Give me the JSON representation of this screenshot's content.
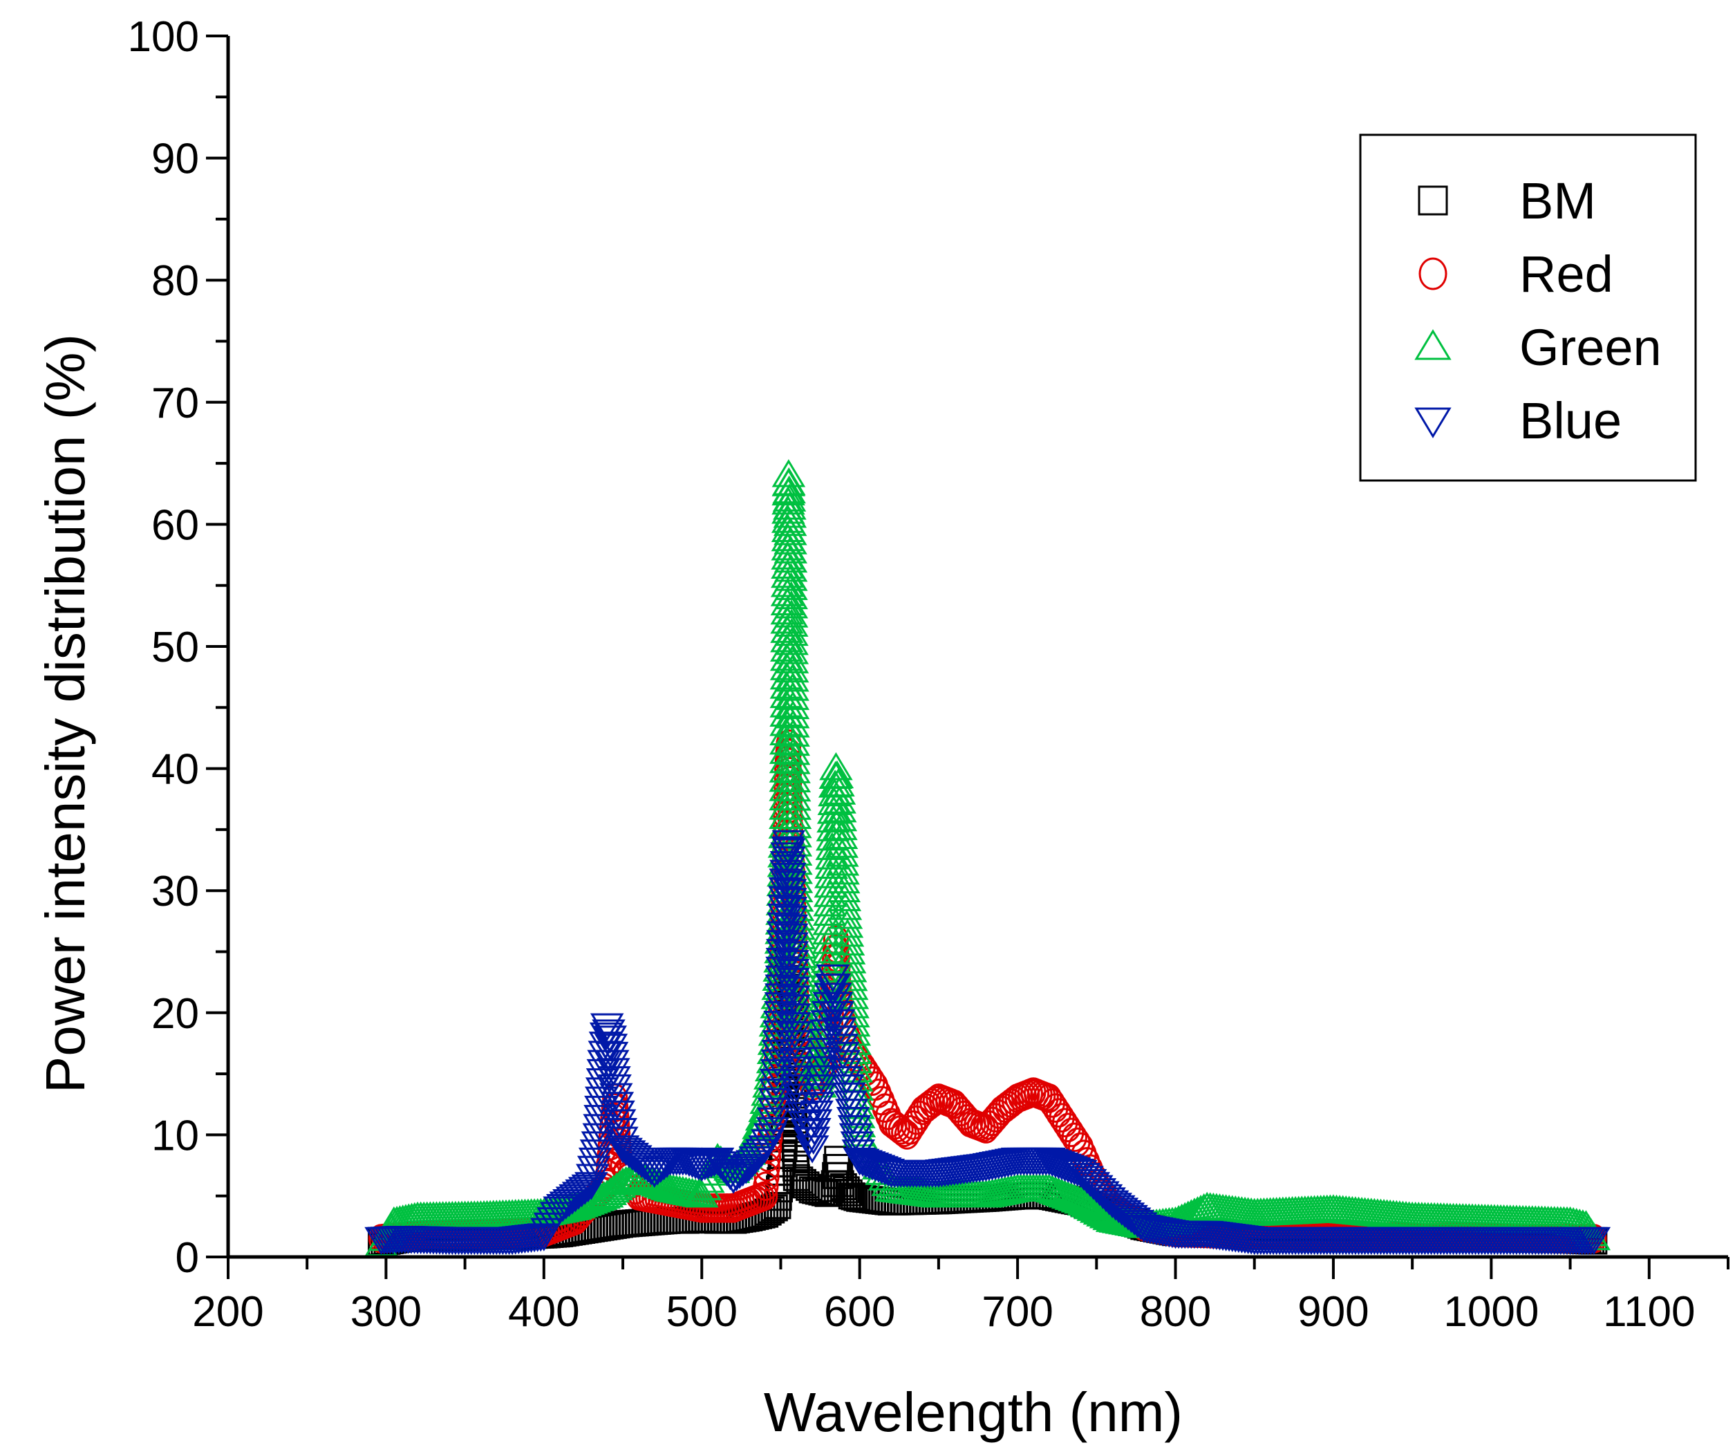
{
  "chart_data": {
    "type": "scatter",
    "title": "",
    "xlabel": "Wavelength (nm)",
    "ylabel": "Power intensity distribution (%)",
    "xlim": [
      200,
      1150
    ],
    "ylim": [
      0,
      100
    ],
    "xticks": [
      200,
      300,
      400,
      500,
      600,
      700,
      800,
      900,
      1000,
      1100
    ],
    "yticks": [
      0,
      10,
      20,
      30,
      40,
      50,
      60,
      70,
      80,
      90,
      100
    ],
    "legend": {
      "position": "top-right"
    },
    "series": [
      {
        "name": "BM",
        "marker": "square-open",
        "color": "#000000",
        "points": [
          [
            297,
            1.2
          ],
          [
            310,
            1.5
          ],
          [
            340,
            1.6
          ],
          [
            380,
            1.7
          ],
          [
            400,
            1.8
          ],
          [
            410,
            1.9
          ],
          [
            420,
            2.1
          ],
          [
            430,
            2.3
          ],
          [
            440,
            2.5
          ],
          [
            450,
            2.7
          ],
          [
            460,
            2.8
          ],
          [
            470,
            2.9
          ],
          [
            480,
            3.0
          ],
          [
            490,
            3.0
          ],
          [
            500,
            3.1
          ],
          [
            510,
            3.0
          ],
          [
            520,
            3.0
          ],
          [
            530,
            3.2
          ],
          [
            540,
            3.5
          ],
          [
            548,
            4.2
          ],
          [
            552,
            9.0
          ],
          [
            554,
            20.0
          ],
          [
            555,
            27.0
          ],
          [
            556,
            22.0
          ],
          [
            558,
            12.0
          ],
          [
            560,
            6.5
          ],
          [
            570,
            5.5
          ],
          [
            580,
            5.2
          ],
          [
            584,
            6.0
          ],
          [
            586,
            8.0
          ],
          [
            588,
            6.0
          ],
          [
            595,
            5.0
          ],
          [
            600,
            4.8
          ],
          [
            620,
            4.5
          ],
          [
            650,
            4.6
          ],
          [
            680,
            4.8
          ],
          [
            700,
            5.0
          ],
          [
            720,
            5.0
          ],
          [
            740,
            4.5
          ],
          [
            760,
            3.5
          ],
          [
            780,
            2.5
          ],
          [
            800,
            2.0
          ],
          [
            820,
            2.0
          ],
          [
            850,
            1.7
          ],
          [
            900,
            1.6
          ],
          [
            950,
            1.5
          ],
          [
            1000,
            1.5
          ],
          [
            1050,
            1.4
          ],
          [
            1065,
            1.3
          ]
        ]
      },
      {
        "name": "Red",
        "marker": "circle-open",
        "color": "#e00000",
        "points": [
          [
            297,
            1.5
          ],
          [
            320,
            1.8
          ],
          [
            360,
            1.9
          ],
          [
            400,
            2.0
          ],
          [
            420,
            3.0
          ],
          [
            440,
            6.0
          ],
          [
            445,
            13.0
          ],
          [
            448,
            8.0
          ],
          [
            460,
            5.0
          ],
          [
            480,
            4.5
          ],
          [
            500,
            4.0
          ],
          [
            520,
            4.0
          ],
          [
            540,
            5.0
          ],
          [
            550,
            20.0
          ],
          [
            554,
            40.0
          ],
          [
            555,
            42.0
          ],
          [
            556,
            36.0
          ],
          [
            558,
            30.0
          ],
          [
            560,
            20.0
          ],
          [
            570,
            14.0
          ],
          [
            580,
            16.0
          ],
          [
            585,
            26.0
          ],
          [
            588,
            20.0
          ],
          [
            595,
            17.0
          ],
          [
            600,
            16.0
          ],
          [
            610,
            14.0
          ],
          [
            620,
            11.0
          ],
          [
            630,
            10.0
          ],
          [
            640,
            12.0
          ],
          [
            650,
            13.0
          ],
          [
            660,
            12.5
          ],
          [
            670,
            11.0
          ],
          [
            680,
            10.5
          ],
          [
            690,
            12.0
          ],
          [
            700,
            13.0
          ],
          [
            710,
            13.5
          ],
          [
            720,
            13.0
          ],
          [
            730,
            11.0
          ],
          [
            740,
            9.0
          ],
          [
            750,
            6.0
          ],
          [
            760,
            4.0
          ],
          [
            780,
            2.5
          ],
          [
            800,
            2.0
          ],
          [
            850,
            1.8
          ],
          [
            900,
            1.7
          ],
          [
            950,
            1.6
          ],
          [
            1000,
            1.6
          ],
          [
            1050,
            1.5
          ],
          [
            1065,
            1.5
          ]
        ]
      },
      {
        "name": "Green",
        "marker": "triangle-up-open",
        "color": "#00c040",
        "points": [
          [
            297,
            1.0
          ],
          [
            305,
            2.8
          ],
          [
            320,
            3.2
          ],
          [
            360,
            3.3
          ],
          [
            400,
            3.5
          ],
          [
            420,
            4.0
          ],
          [
            440,
            5.0
          ],
          [
            450,
            6.0
          ],
          [
            460,
            6.5
          ],
          [
            480,
            5.5
          ],
          [
            500,
            5.0
          ],
          [
            510,
            8.0
          ],
          [
            520,
            7.0
          ],
          [
            530,
            8.5
          ],
          [
            540,
            12.0
          ],
          [
            545,
            16.0
          ],
          [
            550,
            25.0
          ],
          [
            553,
            36.0
          ],
          [
            554,
            52.0
          ],
          [
            555,
            64.0
          ],
          [
            556,
            60.0
          ],
          [
            557,
            51.0
          ],
          [
            558,
            42.0
          ],
          [
            560,
            30.0
          ],
          [
            565,
            20.0
          ],
          [
            570,
            16.0
          ],
          [
            575,
            14.0
          ],
          [
            580,
            25.0
          ],
          [
            583,
            35.0
          ],
          [
            585,
            40.0
          ],
          [
            587,
            38.0
          ],
          [
            590,
            30.0
          ],
          [
            595,
            22.0
          ],
          [
            600,
            10.0
          ],
          [
            620,
            5.5
          ],
          [
            650,
            5.0
          ],
          [
            680,
            5.0
          ],
          [
            700,
            5.5
          ],
          [
            720,
            5.5
          ],
          [
            740,
            4.5
          ],
          [
            760,
            3.0
          ],
          [
            780,
            2.5
          ],
          [
            800,
            2.8
          ],
          [
            820,
            4.0
          ],
          [
            850,
            3.5
          ],
          [
            900,
            3.8
          ],
          [
            950,
            3.2
          ],
          [
            1000,
            3.0
          ],
          [
            1050,
            2.8
          ],
          [
            1060,
            2.5
          ],
          [
            1065,
            1.5
          ]
        ]
      },
      {
        "name": "Blue",
        "marker": "triangle-down-open",
        "color": "#0018a8",
        "points": [
          [
            297,
            1.5
          ],
          [
            310,
            1.6
          ],
          [
            340,
            1.5
          ],
          [
            380,
            1.5
          ],
          [
            400,
            1.8
          ],
          [
            410,
            4.0
          ],
          [
            420,
            5.0
          ],
          [
            430,
            6.0
          ],
          [
            435,
            10.0
          ],
          [
            438,
            16.0
          ],
          [
            440,
            19.0
          ],
          [
            442,
            18.0
          ],
          [
            445,
            14.0
          ],
          [
            450,
            9.0
          ],
          [
            460,
            8.0
          ],
          [
            470,
            7.0
          ],
          [
            480,
            8.0
          ],
          [
            490,
            8.0
          ],
          [
            500,
            7.5
          ],
          [
            510,
            8.0
          ],
          [
            520,
            6.5
          ],
          [
            530,
            7.5
          ],
          [
            540,
            9.0
          ],
          [
            545,
            10.5
          ],
          [
            550,
            20.0
          ],
          [
            552,
            28.0
          ],
          [
            554,
            33.0
          ],
          [
            555,
            34.0
          ],
          [
            556,
            30.0
          ],
          [
            558,
            22.0
          ],
          [
            560,
            14.0
          ],
          [
            565,
            11.0
          ],
          [
            570,
            9.0
          ],
          [
            575,
            14.0
          ],
          [
            580,
            20.0
          ],
          [
            583,
            23.0
          ],
          [
            586,
            20.0
          ],
          [
            590,
            16.0
          ],
          [
            595,
            12.0
          ],
          [
            600,
            8.0
          ],
          [
            620,
            7.0
          ],
          [
            650,
            7.0
          ],
          [
            680,
            7.5
          ],
          [
            700,
            8.0
          ],
          [
            720,
            8.0
          ],
          [
            740,
            7.0
          ],
          [
            760,
            4.5
          ],
          [
            780,
            2.5
          ],
          [
            800,
            2.0
          ],
          [
            820,
            2.0
          ],
          [
            850,
            1.5
          ],
          [
            900,
            1.5
          ],
          [
            950,
            1.5
          ],
          [
            1000,
            1.5
          ],
          [
            1050,
            1.5
          ],
          [
            1065,
            1.5
          ]
        ]
      }
    ]
  }
}
